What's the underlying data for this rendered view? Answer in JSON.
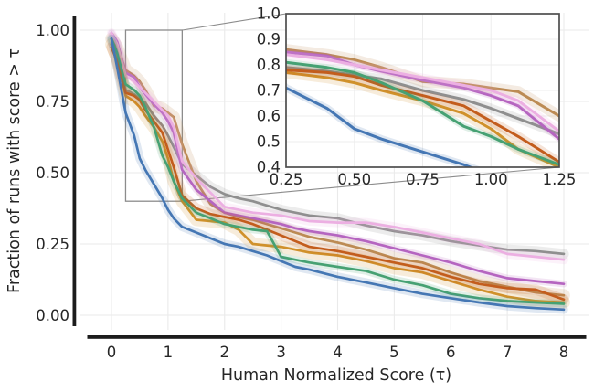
{
  "figure": {
    "background": "#ffffff"
  },
  "chart_data": {
    "type": "line",
    "title": "",
    "xlabel": "Human Normalized Score (τ)",
    "ylabel": "Fraction of runs with score > τ",
    "grid": true,
    "legend": "none",
    "main_axes": {
      "xlim": [
        -0.45,
        8.4
      ],
      "ylim": [
        0.0,
        1.0
      ],
      "x_ticks": [
        0,
        1,
        2,
        3,
        4,
        5,
        6,
        7,
        8
      ],
      "x_tick_labels": [
        "0",
        "1",
        "2",
        "3",
        "4",
        "5",
        "6",
        "7",
        "8"
      ],
      "y_ticks": [
        0.0,
        0.25,
        0.5,
        0.75,
        1.0
      ],
      "y_tick_labels": [
        "0.00",
        "0.25",
        "0.50",
        "0.75",
        "1.00"
      ]
    },
    "inset_axes": {
      "xlim": [
        0.25,
        1.25
      ],
      "ylim": [
        0.4,
        1.0
      ],
      "x_ticks": [
        0.25,
        0.5,
        0.75,
        1.0,
        1.25
      ],
      "x_tick_labels": [
        "0.25",
        "0.50",
        "0.75",
        "1.00",
        "1.25"
      ],
      "y_ticks": [
        0.4,
        0.5,
        0.6,
        0.7,
        0.8,
        0.9,
        1.0
      ],
      "y_tick_labels": [
        "0.4",
        "0.5",
        "0.6",
        "0.7",
        "0.8",
        "0.9",
        "1.0"
      ]
    },
    "zoom_region": {
      "x": [
        0.25,
        1.25
      ],
      "y": [
        0.4,
        1.0
      ]
    },
    "x": [
      0,
      0.1,
      0.25,
      0.4,
      0.5,
      0.6,
      0.75,
      0.9,
      1.0,
      1.1,
      1.25,
      1.5,
      1.75,
      2.0,
      2.25,
      2.5,
      2.75,
      3.0,
      3.25,
      3.5,
      4.0,
      4.5,
      5.0,
      5.5,
      6.0,
      6.5,
      7.0,
      7.5,
      8.0
    ],
    "series": [
      {
        "name": "gray",
        "color": "#8f8f8f",
        "ci": 0.018,
        "values": [
          0.97,
          0.93,
          0.79,
          0.775,
          0.76,
          0.745,
          0.7,
          0.665,
          0.63,
          0.59,
          0.53,
          0.49,
          0.45,
          0.425,
          0.41,
          0.4,
          0.385,
          0.37,
          0.36,
          0.35,
          0.34,
          0.315,
          0.295,
          0.28,
          0.26,
          0.245,
          0.23,
          0.225,
          0.215
        ]
      },
      {
        "name": "tan",
        "color": "#bc8b54",
        "ci": 0.022,
        "values": [
          0.97,
          0.94,
          0.86,
          0.84,
          0.82,
          0.79,
          0.735,
          0.725,
          0.71,
          0.695,
          0.6,
          0.47,
          0.39,
          0.36,
          0.345,
          0.335,
          0.32,
          0.305,
          0.29,
          0.275,
          0.255,
          0.23,
          0.2,
          0.185,
          0.15,
          0.12,
          0.1,
          0.08,
          0.07
        ]
      },
      {
        "name": "magenta",
        "color": "#b565c0",
        "ci": 0.012,
        "values": [
          0.99,
          0.96,
          0.85,
          0.835,
          0.8,
          0.775,
          0.74,
          0.71,
          0.68,
          0.64,
          0.51,
          0.44,
          0.4,
          0.36,
          0.35,
          0.34,
          0.33,
          0.32,
          0.305,
          0.295,
          0.28,
          0.26,
          0.235,
          0.21,
          0.185,
          0.155,
          0.13,
          0.12,
          0.11
        ]
      },
      {
        "name": "pink",
        "color": "#ecafe2",
        "ci": 0.016,
        "values": [
          0.99,
          0.95,
          0.84,
          0.82,
          0.8,
          0.78,
          0.75,
          0.72,
          0.7,
          0.66,
          0.54,
          0.48,
          0.43,
          0.38,
          0.37,
          0.36,
          0.355,
          0.35,
          0.34,
          0.33,
          0.325,
          0.325,
          0.31,
          0.29,
          0.27,
          0.25,
          0.215,
          0.205,
          0.195
        ]
      },
      {
        "name": "amber",
        "color": "#d0912b",
        "ci": 0.022,
        "values": [
          0.95,
          0.9,
          0.77,
          0.75,
          0.73,
          0.7,
          0.66,
          0.61,
          0.55,
          0.47,
          0.4,
          0.335,
          0.33,
          0.325,
          0.3,
          0.25,
          0.245,
          0.24,
          0.23,
          0.22,
          0.21,
          0.19,
          0.165,
          0.15,
          0.12,
          0.09,
          0.065,
          0.05,
          0.045
        ]
      },
      {
        "name": "dark-orange",
        "color": "#c35d1d",
        "ci": 0.018,
        "values": [
          0.94,
          0.89,
          0.78,
          0.77,
          0.755,
          0.72,
          0.68,
          0.64,
          0.58,
          0.52,
          0.42,
          0.375,
          0.355,
          0.345,
          0.335,
          0.32,
          0.3,
          0.28,
          0.26,
          0.24,
          0.225,
          0.205,
          0.185,
          0.165,
          0.135,
          0.11,
          0.095,
          0.09,
          0.055
        ]
      },
      {
        "name": "green",
        "color": "#46a173",
        "ci": 0.013,
        "values": [
          0.97,
          0.92,
          0.81,
          0.79,
          0.77,
          0.73,
          0.66,
          0.56,
          0.52,
          0.47,
          0.41,
          0.36,
          0.34,
          0.32,
          0.31,
          0.3,
          0.295,
          0.205,
          0.195,
          0.185,
          0.17,
          0.155,
          0.125,
          0.105,
          0.075,
          0.06,
          0.05,
          0.045,
          0.04
        ]
      },
      {
        "name": "blue",
        "color": "#4577b4",
        "ci": 0.015,
        "values": [
          0.97,
          0.87,
          0.71,
          0.63,
          0.55,
          0.51,
          0.46,
          0.41,
          0.37,
          0.34,
          0.31,
          0.29,
          0.27,
          0.25,
          0.24,
          0.225,
          0.21,
          0.19,
          0.17,
          0.16,
          0.135,
          0.115,
          0.095,
          0.075,
          0.06,
          0.045,
          0.032,
          0.025,
          0.02
        ]
      }
    ]
  }
}
